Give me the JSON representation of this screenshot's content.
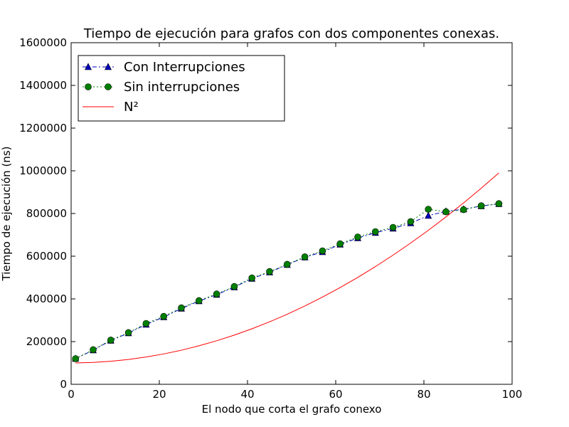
{
  "chart_data": {
    "type": "line",
    "title": "Tiempo de ejecución para grafos con dos componentes conexas.",
    "xlabel": "El nodo que corta el grafo conexo",
    "ylabel": "Tiempo de ejecución (ns)",
    "xlim": [
      0,
      100
    ],
    "ylim": [
      0,
      1600000
    ],
    "xticks": [
      "0",
      "20",
      "40",
      "60",
      "80",
      "100"
    ],
    "yticks": [
      "0",
      "200000",
      "400000",
      "600000",
      "800000",
      "1000000",
      "1200000",
      "1400000",
      "1600000"
    ],
    "grid": false,
    "legend_position": "top-left",
    "series": [
      {
        "name": "Con Interrupciones",
        "color": "#0000bf",
        "marker": "triangle",
        "linestyle": "dash-dot",
        "x": [
          1,
          5,
          9,
          13,
          17,
          21,
          25,
          29,
          33,
          37,
          41,
          45,
          49,
          53,
          57,
          61,
          65,
          69,
          73,
          77,
          81,
          85,
          89,
          93,
          97
        ],
        "y": [
          120000,
          160000,
          205000,
          240000,
          280000,
          315000,
          355000,
          390000,
          420000,
          455000,
          495000,
          525000,
          560000,
          595000,
          620000,
          655000,
          685000,
          710000,
          730000,
          755000,
          790000,
          810000,
          820000,
          835000,
          845000
        ]
      },
      {
        "name": "Sin interrupciones",
        "color": "#007f00",
        "marker": "circle",
        "linestyle": "dotted",
        "x": [
          1,
          5,
          9,
          13,
          17,
          21,
          25,
          29,
          33,
          37,
          41,
          45,
          49,
          53,
          57,
          61,
          65,
          69,
          73,
          77,
          81,
          85,
          89,
          93,
          97
        ],
        "y": [
          120000,
          162000,
          207000,
          242000,
          285000,
          318000,
          358000,
          392000,
          423000,
          458000,
          498000,
          528000,
          562000,
          597000,
          625000,
          658000,
          690000,
          715000,
          735000,
          762000,
          820000,
          808000,
          818000,
          836000,
          846000
        ]
      },
      {
        "name": "N²",
        "color": "#ff0000",
        "marker": "none",
        "linestyle": "solid",
        "x": [
          1,
          5,
          9,
          13,
          17,
          21,
          25,
          29,
          33,
          37,
          41,
          45,
          49,
          53,
          57,
          61,
          65,
          69,
          73,
          77,
          81,
          85,
          89,
          93,
          97
        ],
        "y": [
          100000,
          102400,
          107900,
          116300,
          127800,
          142300,
          159800,
          180300,
          203900,
          230400,
          260000,
          292600,
          328200,
          366800,
          408400,
          453100,
          500700,
          551300,
          605000,
          661700,
          721300,
          784000,
          849700,
          918300,
          990000
        ]
      }
    ]
  }
}
